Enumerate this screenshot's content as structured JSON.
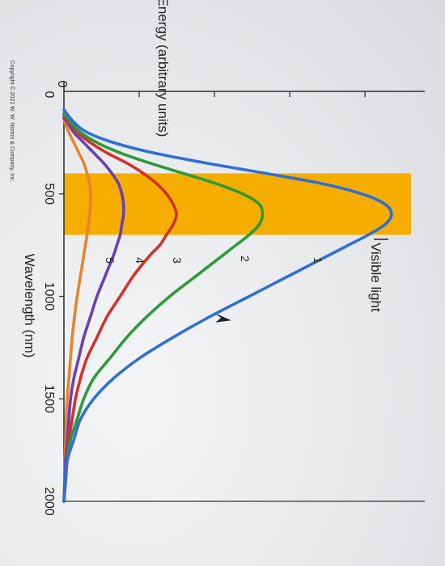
{
  "chart_data": {
    "type": "line",
    "title": "",
    "xlabel": "Wavelength (nm)",
    "ylabel": "Energy (arbitrary units)",
    "xlim": [
      0,
      2000
    ],
    "ylim": [
      0,
      100
    ],
    "x_ticks": [
      "0",
      "500",
      "1000",
      "1500",
      "2000"
    ],
    "y_tick_labels": [
      "0"
    ],
    "visible_band": {
      "label": "Visible light",
      "range_nm": [
        400,
        700
      ],
      "color": "#f5ad00"
    },
    "series": [
      {
        "name": "1",
        "color": "#2f6fd6",
        "x": [
          90,
          150,
          200,
          250,
          300,
          350,
          400,
          450,
          500,
          550,
          600,
          650,
          700,
          750,
          800,
          900,
          1000,
          1100,
          1200,
          1300,
          1400,
          1500,
          1600,
          1700,
          1800,
          1900,
          2000
        ],
        "y": [
          0,
          3,
          7,
          15,
          27,
          43,
          61,
          78,
          90,
          97,
          99,
          97,
          92,
          86,
          80,
          68,
          56,
          44,
          33,
          23,
          15,
          9,
          5,
          3,
          1,
          0.5,
          0
        ]
      },
      {
        "name": "2",
        "color": "#2c9a3a",
        "x": [
          110,
          150,
          200,
          250,
          300,
          350,
          400,
          450,
          500,
          550,
          600,
          650,
          700,
          750,
          800,
          900,
          1000,
          1100,
          1200,
          1300,
          1400,
          1500,
          1600,
          1700,
          1800,
          1900,
          2000
        ],
        "y": [
          0,
          2,
          5,
          10,
          17,
          26,
          36,
          46,
          54,
          59,
          60,
          59,
          56,
          52,
          48,
          40,
          32,
          25,
          19,
          14,
          9,
          6,
          4,
          2,
          1,
          0.5,
          0
        ]
      },
      {
        "name": "3",
        "color": "#d4302b",
        "x": [
          120,
          150,
          200,
          250,
          300,
          350,
          400,
          450,
          500,
          550,
          600,
          650,
          700,
          750,
          800,
          900,
          1000,
          1100,
          1200,
          1300,
          1400,
          1500,
          1600,
          1700,
          1800,
          1900,
          2000
        ],
        "y": [
          0,
          1.5,
          4,
          8,
          13,
          19,
          24,
          28,
          31,
          33,
          34,
          33,
          31,
          29,
          26,
          21,
          17,
          13,
          10,
          7,
          5,
          3.5,
          2.5,
          1.5,
          1,
          0.5,
          0
        ]
      },
      {
        "name": "4",
        "color": "#6a3fb5",
        "x": [
          130,
          150,
          200,
          250,
          300,
          350,
          400,
          450,
          500,
          550,
          600,
          650,
          700,
          750,
          800,
          900,
          1000,
          1100,
          1200,
          1300,
          1400,
          1500,
          1600,
          1700,
          1800,
          1900,
          2000
        ],
        "y": [
          0,
          1,
          3,
          6,
          9,
          12,
          14.5,
          16.5,
          17.5,
          18,
          18,
          17.5,
          17,
          16,
          15,
          12.5,
          10,
          8,
          6,
          4.5,
          3,
          2,
          1.5,
          1,
          0.5,
          0.3,
          0
        ]
      },
      {
        "name": "5",
        "color": "#e8832a",
        "x": [
          140,
          200,
          250,
          300,
          350,
          400,
          450,
          500,
          550,
          600,
          650,
          700,
          750,
          800,
          900,
          1000,
          1100,
          1200,
          1300,
          1400,
          1500,
          1600,
          1700,
          1800,
          1900,
          2000
        ],
        "y": [
          0,
          1.5,
          3,
          4.5,
          6,
          7,
          7.8,
          8,
          8,
          7.8,
          7.4,
          7,
          6.5,
          6,
          5,
          4,
          3.2,
          2.5,
          2,
          1.5,
          1,
          0.7,
          0.5,
          0.3,
          0.2,
          0
        ]
      }
    ]
  },
  "copyright": "Copyright © 2021 W. W. Norton & Company, Inc."
}
